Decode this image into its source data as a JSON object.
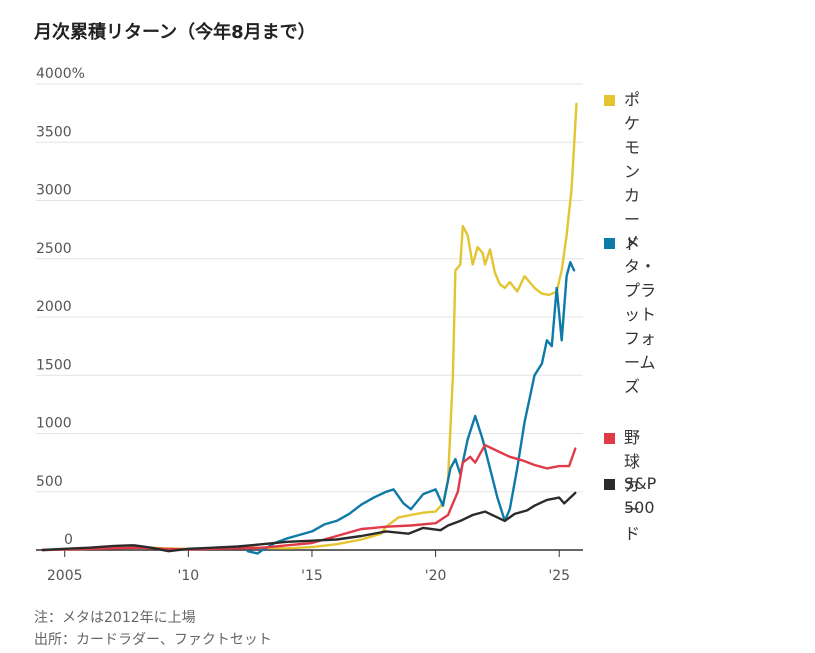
{
  "chart_data": {
    "type": "line",
    "title": "月次累積リターン（今年8月まで）",
    "ylim": [
      0,
      4000
    ],
    "xlim": [
      2004.0,
      2025.8
    ],
    "grid": true,
    "legend": "right",
    "y_ticks": [
      {
        "value": 4000,
        "label": "4000%"
      },
      {
        "value": 3500,
        "label": "3500"
      },
      {
        "value": 3000,
        "label": "3000"
      },
      {
        "value": 2500,
        "label": "2500"
      },
      {
        "value": 2000,
        "label": "2000"
      },
      {
        "value": 1500,
        "label": "1500"
      },
      {
        "value": 1000,
        "label": "1000"
      },
      {
        "value": 500,
        "label": "500"
      },
      {
        "value": 0,
        "label": "0"
      }
    ],
    "x_ticks": [
      {
        "value": 2005,
        "label": "2005"
      },
      {
        "value": 2010,
        "label": "'10"
      },
      {
        "value": 2015,
        "label": "'15"
      },
      {
        "value": 2020,
        "label": "'20"
      },
      {
        "value": 2025,
        "label": "'25"
      }
    ],
    "series": [
      {
        "name": "ポケモンカード",
        "color": "#e3c532",
        "points": [
          [
            2004.1,
            0
          ],
          [
            2005.0,
            5
          ],
          [
            2006.0,
            10
          ],
          [
            2007.0,
            20
          ],
          [
            2008.0,
            25
          ],
          [
            2009.0,
            15
          ],
          [
            2010.0,
            10
          ],
          [
            2011.0,
            15
          ],
          [
            2012.0,
            20
          ],
          [
            2013.0,
            20
          ],
          [
            2014.0,
            15
          ],
          [
            2015.0,
            25
          ],
          [
            2016.0,
            50
          ],
          [
            2017.0,
            90
          ],
          [
            2017.8,
            140
          ],
          [
            2018.0,
            200
          ],
          [
            2018.5,
            280
          ],
          [
            2019.0,
            300
          ],
          [
            2019.5,
            320
          ],
          [
            2020.0,
            330
          ],
          [
            2020.3,
            400
          ],
          [
            2020.5,
            600
          ],
          [
            2020.7,
            1500
          ],
          [
            2020.8,
            2400
          ],
          [
            2021.0,
            2450
          ],
          [
            2021.1,
            2780
          ],
          [
            2021.3,
            2700
          ],
          [
            2021.5,
            2450
          ],
          [
            2021.7,
            2600
          ],
          [
            2021.9,
            2550
          ],
          [
            2022.0,
            2450
          ],
          [
            2022.2,
            2580
          ],
          [
            2022.4,
            2380
          ],
          [
            2022.6,
            2280
          ],
          [
            2022.8,
            2250
          ],
          [
            2023.0,
            2300
          ],
          [
            2023.3,
            2220
          ],
          [
            2023.6,
            2350
          ],
          [
            2023.8,
            2300
          ],
          [
            2024.0,
            2250
          ],
          [
            2024.3,
            2200
          ],
          [
            2024.6,
            2190
          ],
          [
            2024.9,
            2220
          ],
          [
            2025.1,
            2400
          ],
          [
            2025.3,
            2700
          ],
          [
            2025.5,
            3100
          ],
          [
            2025.7,
            3830
          ]
        ]
      },
      {
        "name": "メタ・\nプラットフォームズ",
        "color": "#0e7aa8",
        "points": [
          [
            2012.4,
            -10
          ],
          [
            2012.8,
            -30
          ],
          [
            2013.0,
            0
          ],
          [
            2013.5,
            60
          ],
          [
            2014.0,
            100
          ],
          [
            2014.5,
            130
          ],
          [
            2015.0,
            160
          ],
          [
            2015.5,
            220
          ],
          [
            2016.0,
            250
          ],
          [
            2016.5,
            310
          ],
          [
            2017.0,
            390
          ],
          [
            2017.5,
            450
          ],
          [
            2018.0,
            500
          ],
          [
            2018.3,
            520
          ],
          [
            2018.7,
            400
          ],
          [
            2019.0,
            350
          ],
          [
            2019.5,
            480
          ],
          [
            2020.0,
            520
          ],
          [
            2020.3,
            380
          ],
          [
            2020.6,
            700
          ],
          [
            2020.8,
            780
          ],
          [
            2021.0,
            650
          ],
          [
            2021.3,
            950
          ],
          [
            2021.6,
            1150
          ],
          [
            2021.9,
            950
          ],
          [
            2022.2,
            700
          ],
          [
            2022.5,
            450
          ],
          [
            2022.8,
            250
          ],
          [
            2023.0,
            350
          ],
          [
            2023.3,
            700
          ],
          [
            2023.6,
            1100
          ],
          [
            2023.8,
            1300
          ],
          [
            2024.0,
            1500
          ],
          [
            2024.3,
            1600
          ],
          [
            2024.5,
            1800
          ],
          [
            2024.7,
            1750
          ],
          [
            2024.9,
            2250
          ],
          [
            2025.1,
            1800
          ],
          [
            2025.3,
            2350
          ],
          [
            2025.45,
            2470
          ],
          [
            2025.6,
            2400
          ]
        ]
      },
      {
        "name": "野球カード",
        "color": "#e03a48",
        "points": [
          [
            2004.1,
            0
          ],
          [
            2005.0,
            5
          ],
          [
            2006.0,
            10
          ],
          [
            2007.0,
            15
          ],
          [
            2008.0,
            20
          ],
          [
            2009.0,
            10
          ],
          [
            2010.0,
            5
          ],
          [
            2011.0,
            10
          ],
          [
            2012.0,
            15
          ],
          [
            2013.0,
            20
          ],
          [
            2014.0,
            40
          ],
          [
            2015.0,
            60
          ],
          [
            2016.0,
            120
          ],
          [
            2017.0,
            180
          ],
          [
            2017.5,
            190
          ],
          [
            2018.0,
            200
          ],
          [
            2019.0,
            210
          ],
          [
            2020.0,
            230
          ],
          [
            2020.5,
            300
          ],
          [
            2020.9,
            500
          ],
          [
            2021.1,
            750
          ],
          [
            2021.4,
            800
          ],
          [
            2021.6,
            750
          ],
          [
            2022.0,
            900
          ],
          [
            2022.5,
            850
          ],
          [
            2023.0,
            800
          ],
          [
            2023.5,
            770
          ],
          [
            2024.0,
            730
          ],
          [
            2024.5,
            700
          ],
          [
            2025.0,
            720
          ],
          [
            2025.4,
            720
          ],
          [
            2025.65,
            870
          ]
        ]
      },
      {
        "name": "S&P 500",
        "color": "#2b2b2b",
        "points": [
          [
            2004.1,
            0
          ],
          [
            2005.0,
            10
          ],
          [
            2006.0,
            20
          ],
          [
            2007.0,
            35
          ],
          [
            2007.8,
            40
          ],
          [
            2008.5,
            20
          ],
          [
            2009.2,
            -10
          ],
          [
            2010.0,
            10
          ],
          [
            2011.0,
            20
          ],
          [
            2012.0,
            30
          ],
          [
            2013.0,
            50
          ],
          [
            2014.0,
            70
          ],
          [
            2015.0,
            80
          ],
          [
            2016.0,
            90
          ],
          [
            2017.0,
            120
          ],
          [
            2018.0,
            160
          ],
          [
            2018.9,
            140
          ],
          [
            2019.5,
            190
          ],
          [
            2020.2,
            170
          ],
          [
            2020.5,
            210
          ],
          [
            2021.0,
            250
          ],
          [
            2021.5,
            300
          ],
          [
            2022.0,
            330
          ],
          [
            2022.5,
            280
          ],
          [
            2022.8,
            250
          ],
          [
            2023.2,
            310
          ],
          [
            2023.7,
            340
          ],
          [
            2024.0,
            380
          ],
          [
            2024.5,
            430
          ],
          [
            2025.0,
            450
          ],
          [
            2025.2,
            400
          ],
          [
            2025.65,
            490
          ]
        ]
      }
    ]
  },
  "notes": {
    "line1": "注：メタは2012年に上場",
    "line2": "出所：カードラダー、ファクトセット"
  }
}
